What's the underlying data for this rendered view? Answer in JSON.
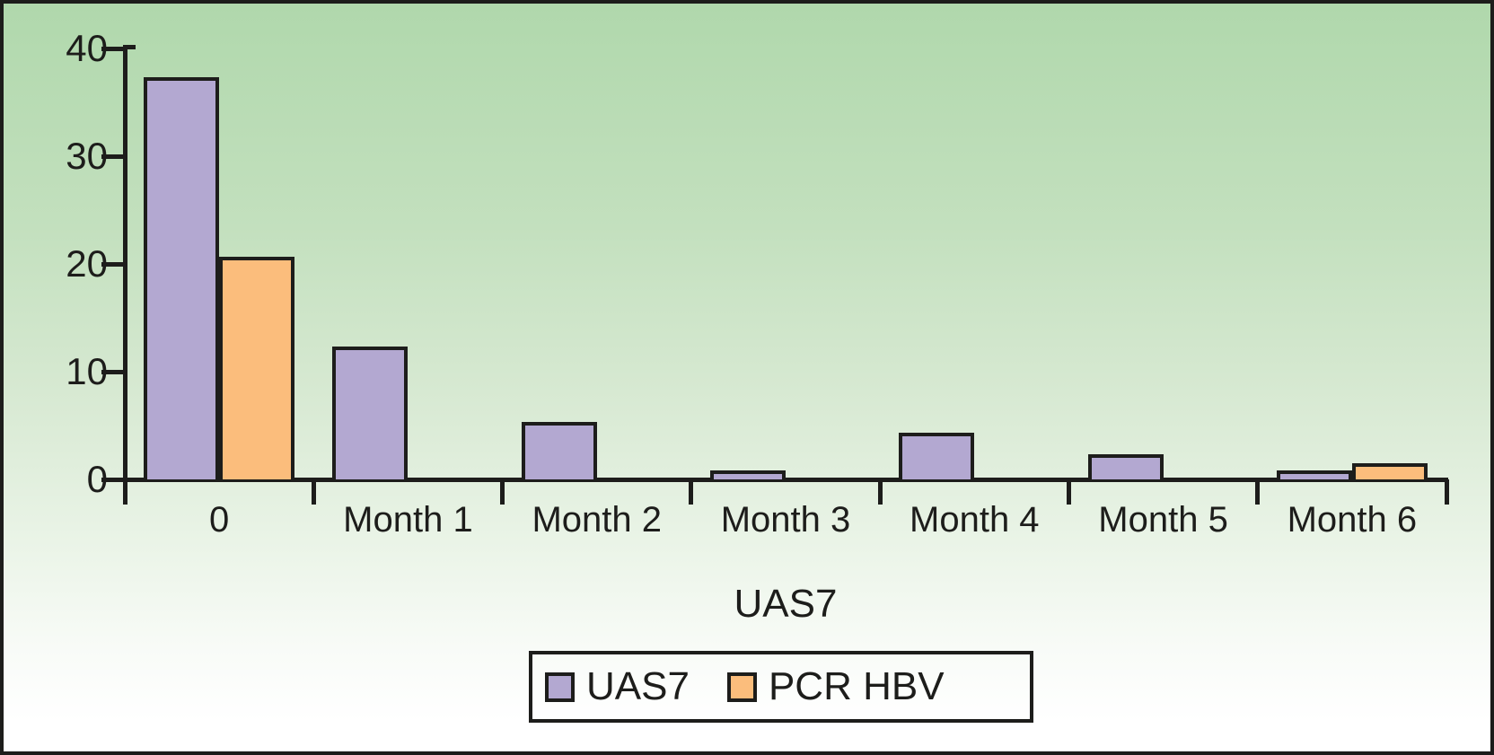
{
  "figure": {
    "axis_title": "UAS7",
    "colors": {
      "bar_uas7": "#b3a8d1",
      "bar_pcr_hbv": "#fbbd7c",
      "stroke": "#1d1d1b",
      "background_top": "#b0d8ac",
      "background_bottom": "#ffffff"
    }
  },
  "chart_data": {
    "type": "bar",
    "title": "",
    "xlabel": "UAS7",
    "ylabel": "",
    "categories": [
      "0",
      "Month 1",
      "Month 2",
      "Month 3",
      "Month 4",
      "Month 5",
      "Month 6"
    ],
    "series": [
      {
        "name": "UAS7",
        "color": "#b3a8d1",
        "values": [
          37,
          12,
          5,
          0.5,
          4,
          2,
          0.5
        ]
      },
      {
        "name": "PCR HBV",
        "color": "#fbbd7c",
        "values": [
          20.3,
          0,
          0,
          0,
          0,
          0,
          1.2
        ]
      }
    ],
    "ylim": [
      0,
      40
    ],
    "y_ticks": [
      0,
      10,
      20,
      30,
      40
    ],
    "grid": false,
    "legend_position": "bottom",
    "legend": [
      "UAS7",
      "PCR HBV"
    ]
  }
}
